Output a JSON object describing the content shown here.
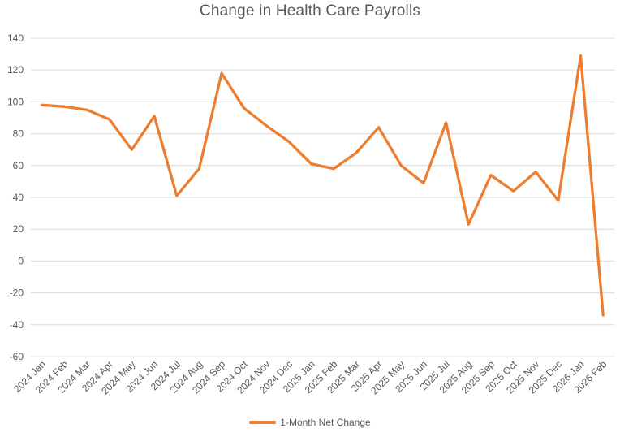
{
  "chart_data": {
    "type": "line",
    "title": "Change in Health Care Payrolls",
    "categories": [
      "2024 Jan",
      "2024 Feb",
      "2024 Mar",
      "2024 Apr",
      "2024 May",
      "2024 Jun",
      "2024 Jul",
      "2024 Aug",
      "2024 Sep",
      "2024 Oct",
      "2024 Nov",
      "2024 Dec",
      "2025 Jan",
      "2025 Feb",
      "2025 Mar",
      "2025 Apr",
      "2025 May",
      "2025 Jun",
      "2025 Jul",
      "2025 Aug",
      "2025 Sep",
      "2025 Oct",
      "2025 Nov",
      "2025 Dec",
      "2026 Jan",
      "2026 Feb"
    ],
    "series": [
      {
        "name": "1-Month Net Change",
        "values": [
          98,
          97,
          95,
          89,
          70,
          91,
          41,
          58,
          118,
          96,
          85,
          75,
          61,
          58,
          68,
          84,
          60,
          49,
          87,
          23,
          54,
          44,
          56,
          38,
          129,
          -34
        ]
      }
    ],
    "xlabel": "",
    "ylabel": "",
    "ylim": [
      -60,
      140
    ],
    "yticks": [
      140,
      120,
      100,
      80,
      60,
      40,
      20,
      0,
      -20,
      -40,
      -60
    ],
    "grid": true,
    "legend_position": "bottom"
  },
  "colors": {
    "line": "#ED7D31",
    "grid": "#D9D9D9",
    "text": "#595959",
    "background": "#FFFFFF"
  }
}
